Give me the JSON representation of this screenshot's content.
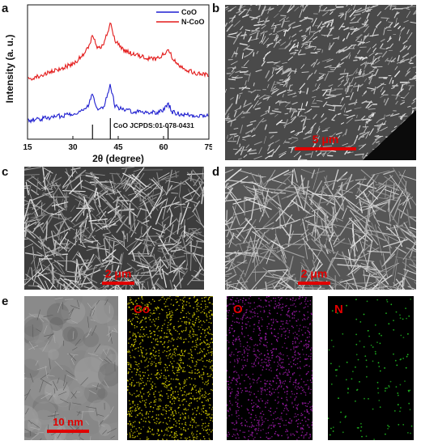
{
  "figure": {
    "panel_labels": {
      "a": "a",
      "b": "b",
      "c": "c",
      "d": "d",
      "e": "e"
    },
    "scale_bars": {
      "b": "5 μm",
      "c": "2 μm",
      "d": "2 μm",
      "e": "10 nm"
    },
    "eds_labels": [
      "Co",
      "O",
      "N"
    ],
    "colors": {
      "scale_bar": "#e00000",
      "CoO": "#1f1fd0",
      "N-CoO": "#e31a1a",
      "Co_map": "#d9d200",
      "O_map": "#a21caf",
      "N_map": "#22c522"
    }
  },
  "chart_data": {
    "type": "line",
    "xlabel": "2θ (degree)",
    "ylabel": "Intensity (a. u.)",
    "xlim": [
      15,
      75
    ],
    "x_ticks": [
      15,
      30,
      45,
      60,
      75
    ],
    "legend_position": "top-right",
    "reference_label": "CoO JCPDS:01-078-0431",
    "reference_peaks": [
      36.5,
      42.4,
      61.5
    ],
    "series": [
      {
        "name": "CoO",
        "color": "#1f1fd0",
        "x": [
          15,
          20,
          25,
          30,
          33,
          35,
          36.5,
          38,
          40,
          42.4,
          44,
          47,
          50,
          55,
          58,
          60,
          61.5,
          63,
          66,
          70,
          75
        ],
        "y": [
          0.18,
          0.2,
          0.22,
          0.25,
          0.27,
          0.32,
          0.45,
          0.3,
          0.3,
          0.52,
          0.32,
          0.28,
          0.27,
          0.26,
          0.26,
          0.28,
          0.35,
          0.26,
          0.24,
          0.23,
          0.23
        ]
      },
      {
        "name": "N-CoO",
        "color": "#e31a1a",
        "x": [
          15,
          20,
          25,
          30,
          33,
          35,
          36.5,
          38,
          40,
          42.4,
          44,
          47,
          50,
          55,
          58,
          60,
          61.5,
          63,
          66,
          70,
          75
        ],
        "y": [
          0.58,
          0.62,
          0.67,
          0.73,
          0.8,
          0.88,
          1.0,
          0.9,
          0.9,
          1.12,
          0.95,
          0.86,
          0.82,
          0.78,
          0.78,
          0.82,
          0.88,
          0.78,
          0.7,
          0.64,
          0.62
        ]
      }
    ]
  }
}
